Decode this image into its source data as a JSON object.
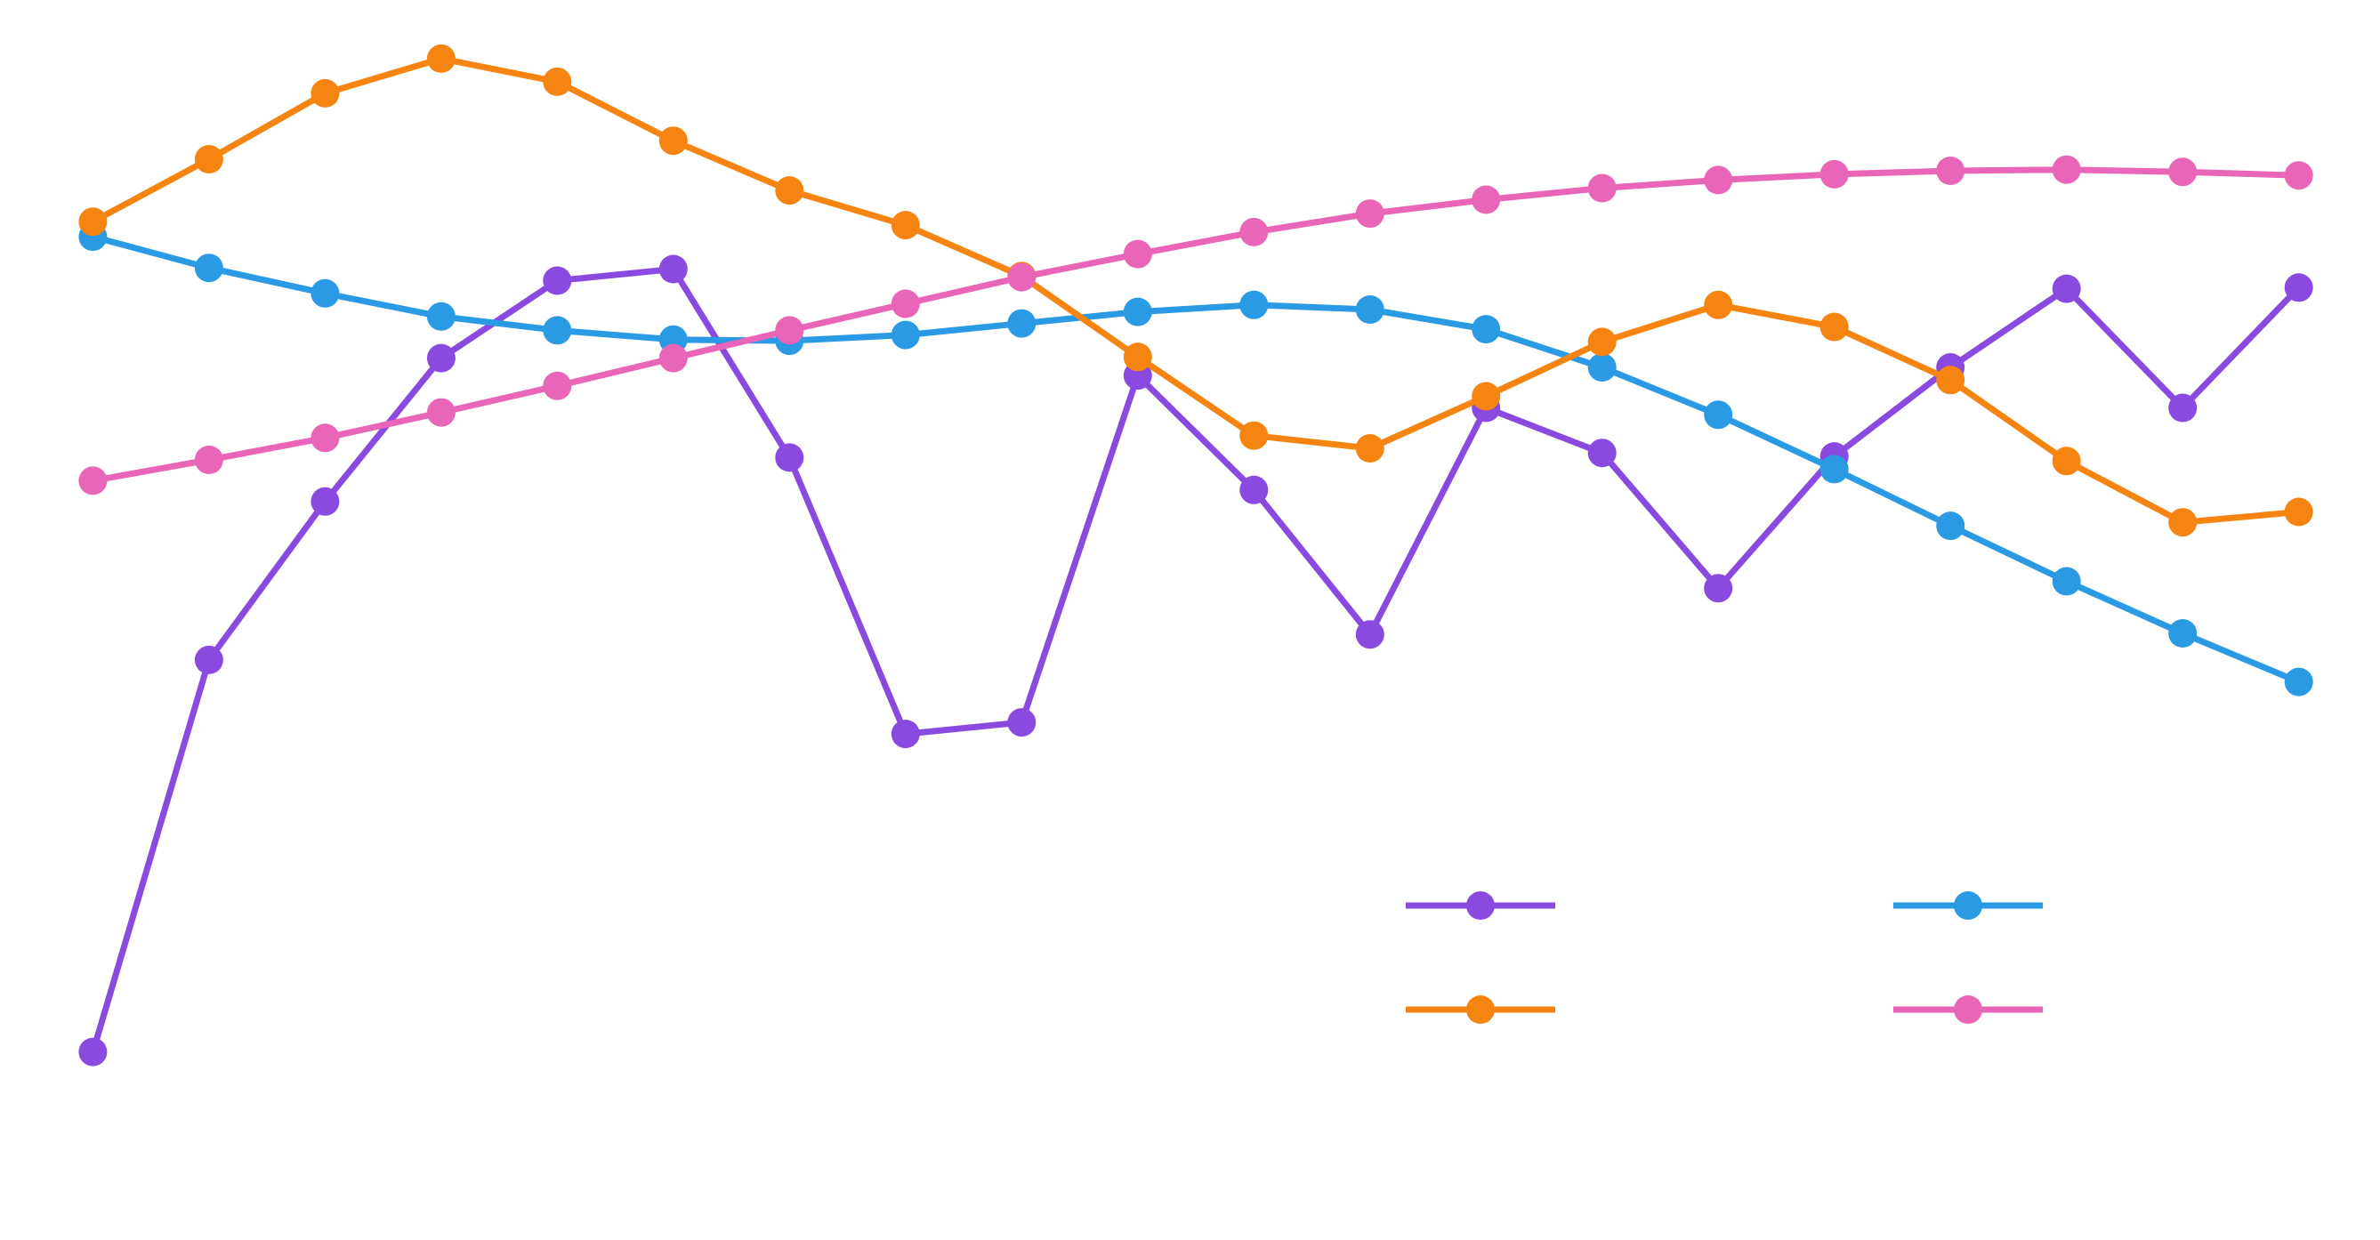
{
  "chart_data": {
    "type": "line",
    "x": [
      0,
      1,
      2,
      3,
      4,
      5,
      6,
      7,
      8,
      9,
      10,
      11,
      12,
      13,
      14,
      15,
      16,
      17,
      18,
      19
    ],
    "ylim": [
      0,
      1
    ],
    "xlim": [
      -0.8,
      19.7
    ],
    "grid": false,
    "legend_position": "bottom-right",
    "series": [
      {
        "name": "",
        "color": "#8A4AE0",
        "values": [
          0.148,
          0.487,
          0.624,
          0.748,
          0.815,
          0.825,
          0.662,
          0.423,
          0.433,
          0.733,
          0.634,
          0.509,
          0.705,
          0.666,
          0.549,
          0.663,
          0.74,
          0.808,
          0.705,
          0.809
        ]
      },
      {
        "name": "",
        "color": "#2B9AE5",
        "values": [
          0.853,
          0.826,
          0.804,
          0.784,
          0.772,
          0.764,
          0.763,
          0.768,
          0.778,
          0.788,
          0.794,
          0.79,
          0.773,
          0.74,
          0.699,
          0.652,
          0.603,
          0.555,
          0.51,
          0.468
        ]
      },
      {
        "name": "",
        "color": "#F58410",
        "values": [
          0.866,
          0.92,
          0.977,
          1.007,
          0.987,
          0.936,
          0.893,
          0.863,
          0.819,
          0.749,
          0.681,
          0.67,
          0.715,
          0.762,
          0.794,
          0.775,
          0.729,
          0.659,
          0.606,
          0.615
        ]
      },
      {
        "name": "",
        "color": "#E965B8",
        "values": [
          0.642,
          0.66,
          0.679,
          0.701,
          0.724,
          0.748,
          0.772,
          0.795,
          0.818,
          0.838,
          0.857,
          0.873,
          0.885,
          0.895,
          0.902,
          0.907,
          0.91,
          0.911,
          0.909,
          0.906
        ]
      }
    ]
  }
}
